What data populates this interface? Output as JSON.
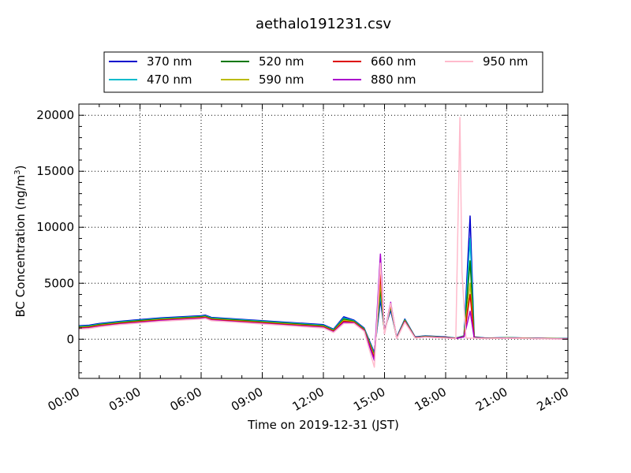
{
  "chart_data": {
    "type": "line",
    "title": "aethalo191231.csv",
    "xlabel": "Time on 2019-12-31 (JST)",
    "ylabel_prefix": "BC Concentration (ng/m",
    "ylabel_sup": "3",
    "ylabel_suffix": ")",
    "xlim": [
      "00:00",
      "24:00"
    ],
    "xlim_hours": [
      0,
      24
    ],
    "ylim": [
      -3500,
      21000
    ],
    "x_ticks": [
      {
        "label": "00:00",
        "hour": 0
      },
      {
        "label": "03:00",
        "hour": 3
      },
      {
        "label": "06:00",
        "hour": 6
      },
      {
        "label": "09:00",
        "hour": 9
      },
      {
        "label": "12:00",
        "hour": 12
      },
      {
        "label": "15:00",
        "hour": 15
      },
      {
        "label": "18:00",
        "hour": 18
      },
      {
        "label": "21:00",
        "hour": 21
      },
      {
        "label": "24:00",
        "hour": 24
      }
    ],
    "y_ticks": [
      {
        "label": "0",
        "value": 0
      },
      {
        "label": "5000",
        "value": 5000
      },
      {
        "label": "10000",
        "value": 10000
      },
      {
        "label": "15000",
        "value": 15000
      },
      {
        "label": "20000",
        "value": 20000
      }
    ],
    "grid": true,
    "legend_position": "top",
    "series": [
      {
        "name": "370 nm",
        "color": "#0000cc",
        "x": [
          0,
          0.5,
          1,
          2,
          3,
          4,
          5,
          6,
          6.2,
          6.5,
          12,
          12.5,
          13,
          13.5,
          14,
          14.5,
          14.8,
          15,
          15.3,
          15.6,
          16,
          16.5,
          17,
          18,
          18.5,
          18.9,
          19.2,
          19.4,
          20,
          21,
          22,
          23,
          24
        ],
        "y": [
          1200,
          1250,
          1400,
          1600,
          1750,
          1900,
          2000,
          2100,
          2150,
          1950,
          1300,
          900,
          2000,
          1700,
          1000,
          -1200,
          3500,
          800,
          2600,
          200,
          1800,
          200,
          300,
          200,
          100,
          300,
          11000,
          200,
          100,
          150,
          100,
          80,
          60
        ]
      },
      {
        "name": "470 nm",
        "color": "#00bbcc",
        "x": [
          0,
          0.5,
          1,
          2,
          3,
          4,
          5,
          6,
          6.2,
          6.5,
          12,
          12.5,
          13,
          13.5,
          14,
          14.5,
          14.8,
          15,
          15.3,
          15.6,
          16,
          16.5,
          17,
          18,
          18.5,
          18.9,
          19.2,
          19.4,
          20,
          21,
          22,
          23,
          24
        ],
        "y": [
          1150,
          1200,
          1350,
          1550,
          1700,
          1850,
          1950,
          2050,
          2100,
          1900,
          1250,
          850,
          1900,
          1650,
          950,
          -1300,
          4000,
          700,
          2800,
          150,
          1750,
          180,
          280,
          180,
          100,
          280,
          9000,
          180,
          90,
          140,
          100,
          70,
          50
        ]
      },
      {
        "name": "520 nm",
        "color": "#007700",
        "x": [
          0,
          0.5,
          1,
          2,
          3,
          4,
          5,
          6,
          6.2,
          6.5,
          12,
          12.5,
          13,
          13.5,
          14,
          14.5,
          14.8,
          15,
          15.3,
          15.6,
          16,
          16.5,
          17,
          18,
          18.5,
          18.9,
          19.2,
          19.4,
          20,
          21,
          22,
          23,
          24
        ],
        "y": [
          1100,
          1150,
          1300,
          1500,
          1650,
          1800,
          1900,
          2000,
          2050,
          1850,
          1200,
          800,
          1800,
          1600,
          900,
          -1400,
          4500,
          650,
          2900,
          120,
          1700,
          160,
          260,
          160,
          90,
          260,
          7000,
          160,
          80,
          130,
          90,
          60,
          40
        ]
      },
      {
        "name": "590 nm",
        "color": "#bbbb00",
        "x": [
          0,
          0.5,
          1,
          2,
          3,
          4,
          5,
          6,
          6.2,
          6.5,
          12,
          12.5,
          13,
          13.5,
          14,
          14.5,
          14.8,
          15,
          15.3,
          15.6,
          16,
          16.5,
          17,
          18,
          18.5,
          18.9,
          19.2,
          19.4,
          20,
          21,
          22,
          23,
          24
        ],
        "y": [
          1050,
          1100,
          1250,
          1450,
          1600,
          1750,
          1850,
          1950,
          2000,
          1800,
          1150,
          750,
          1700,
          1550,
          850,
          -1500,
          5000,
          600,
          3000,
          100,
          1650,
          150,
          240,
          150,
          80,
          240,
          5000,
          150,
          80,
          120,
          90,
          60,
          40
        ]
      },
      {
        "name": "660 nm",
        "color": "#dd0000",
        "x": [
          0,
          0.5,
          1,
          2,
          3,
          4,
          5,
          6,
          6.2,
          6.5,
          12,
          12.5,
          13,
          13.5,
          14,
          14.5,
          14.8,
          15,
          15.3,
          15.6,
          16,
          16.5,
          17,
          18,
          18.5,
          18.9,
          19.2,
          19.4,
          20,
          21,
          22,
          23,
          24
        ],
        "y": [
          1000,
          1050,
          1200,
          1400,
          1550,
          1700,
          1800,
          1900,
          1950,
          1750,
          1100,
          700,
          1600,
          1500,
          800,
          -1700,
          5800,
          550,
          3100,
          80,
          1600,
          140,
          220,
          140,
          70,
          220,
          4000,
          140,
          70,
          110,
          80,
          50,
          30
        ]
      },
      {
        "name": "880 nm",
        "color": "#aa00cc",
        "x": [
          0,
          0.5,
          1,
          2,
          3,
          4,
          5,
          6,
          6.2,
          6.5,
          12,
          12.5,
          13,
          13.5,
          14,
          14.5,
          14.8,
          15,
          15.3,
          15.6,
          16,
          16.5,
          17,
          18,
          18.5,
          18.9,
          19.2,
          19.4,
          20,
          21,
          22,
          23,
          24
        ],
        "y": [
          950,
          1000,
          1150,
          1350,
          1500,
          1650,
          1750,
          1850,
          1900,
          1700,
          1050,
          650,
          1500,
          1450,
          750,
          -1900,
          7600,
          500,
          3300,
          60,
          1550,
          120,
          200,
          120,
          60,
          200,
          2500,
          120,
          60,
          100,
          70,
          40,
          20
        ]
      },
      {
        "name": "950 nm",
        "color": "#ffbbcc",
        "x": [
          0,
          0.5,
          1,
          2,
          3,
          4,
          5,
          6,
          6.2,
          6.5,
          12,
          12.5,
          13,
          13.5,
          14,
          14.5,
          14.8,
          15,
          15.3,
          15.6,
          16,
          16.5,
          17,
          18,
          18.5,
          18.7,
          18.8,
          19.0,
          19.4,
          20,
          21,
          22,
          23,
          24
        ],
        "y": [
          900,
          950,
          1100,
          1300,
          1450,
          1600,
          1700,
          1800,
          1850,
          1650,
          1000,
          600,
          1400,
          1400,
          700,
          -2500,
          6800,
          450,
          3200,
          50,
          1500,
          100,
          180,
          100,
          50,
          19800,
          6000,
          100,
          100,
          50,
          90,
          60,
          30,
          10
        ]
      }
    ]
  }
}
